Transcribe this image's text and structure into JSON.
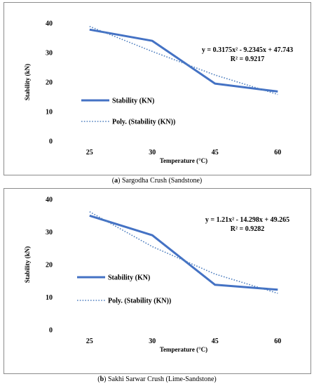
{
  "chart_data": [
    {
      "type": "line",
      "caption_letter": "a",
      "caption_text": "Sargodha Crush (Sandstone)",
      "categories": [
        "25",
        "30",
        "45",
        "60"
      ],
      "series": [
        {
          "name": "Stability (KN)",
          "values": [
            37.8,
            34.0,
            19.5,
            16.8
          ],
          "color": "#4472c4",
          "style": "solid"
        },
        {
          "name": "Poly. (Stability (KN))",
          "values": [
            38.9,
            30.4,
            22.4,
            15.8
          ],
          "color": "#4472c4",
          "style": "dotted"
        }
      ],
      "equation": "y = 0.3175x² - 9.2345x + 47.743",
      "r_squared": "R² = 0.9217",
      "xlabel": "Temperature (°C)",
      "ylabel": "Stability (kN)",
      "ylim": [
        0,
        40
      ],
      "yticks": [
        "0",
        "10",
        "20",
        "30",
        "40"
      ],
      "grid": false,
      "legend_position": "center-left"
    },
    {
      "type": "line",
      "caption_letter": "b",
      "caption_text": "Sakhi Sarwar Crush (Lime-Sandstone)",
      "categories": [
        "25",
        "30",
        "45",
        "60"
      ],
      "series": [
        {
          "name": "Stability (KN)",
          "values": [
            35.0,
            29.0,
            13.8,
            12.3
          ],
          "color": "#4472c4",
          "style": "solid"
        },
        {
          "name": "Poly. (Stability (KN))",
          "values": [
            36.2,
            25.5,
            17.1,
            11.2
          ],
          "color": "#4472c4",
          "style": "dotted"
        }
      ],
      "equation": "y = 1.21x² - 14.298x + 49.265",
      "r_squared": "R² = 0.9282",
      "xlabel": "Temperature (°C)",
      "ylabel": "Stability (kN)",
      "ylim": [
        0,
        40
      ],
      "yticks": [
        "0",
        "10",
        "20",
        "30",
        "40"
      ],
      "grid": false,
      "legend_position": "center-left"
    }
  ]
}
